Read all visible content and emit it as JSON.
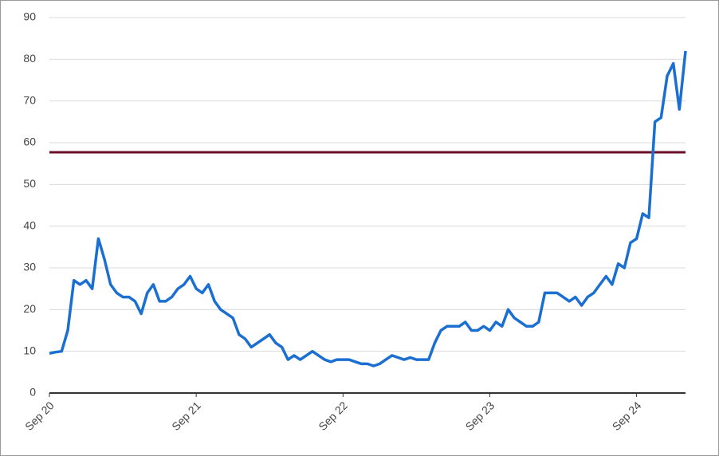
{
  "chart_data": {
    "type": "line",
    "categories": [
      "Sep 20",
      null,
      null,
      null,
      null,
      null,
      null,
      null,
      null,
      null,
      null,
      null,
      null,
      null,
      null,
      null,
      null,
      null,
      null,
      null,
      null,
      null,
      null,
      null,
      "Sep 21",
      null,
      null,
      null,
      null,
      null,
      null,
      null,
      null,
      null,
      null,
      null,
      null,
      null,
      null,
      null,
      null,
      null,
      null,
      null,
      null,
      null,
      null,
      null,
      "Sep 22",
      null,
      null,
      null,
      null,
      null,
      null,
      null,
      null,
      null,
      null,
      null,
      null,
      null,
      null,
      null,
      null,
      null,
      null,
      null,
      null,
      null,
      null,
      null,
      "Sep 23",
      null,
      null,
      null,
      null,
      null,
      null,
      null,
      null,
      null,
      null,
      null,
      null,
      null,
      null,
      null,
      null,
      null,
      null,
      null,
      null,
      null,
      null,
      null,
      "Sep 24",
      null,
      null,
      null,
      null,
      null,
      null,
      null,
      null
    ],
    "series": [
      {
        "color": "#1a6fd1",
        "values": [
          9.5,
          9.8,
          10,
          15,
          27,
          26,
          27,
          25,
          37,
          32,
          26,
          24,
          23,
          23,
          22,
          19,
          24,
          26,
          22,
          22,
          23,
          25,
          26,
          28,
          25,
          24,
          26,
          22,
          20,
          19,
          18,
          14,
          13,
          11,
          12,
          13,
          14,
          12,
          11,
          8,
          9,
          8,
          9,
          10,
          9,
          8,
          7.5,
          8,
          8,
          8,
          7.5,
          7,
          7,
          6.5,
          7,
          8,
          9,
          8.5,
          8,
          8.5,
          8,
          8,
          8,
          12,
          15,
          16,
          16,
          16,
          17,
          15,
          15,
          16,
          15,
          17,
          16,
          20,
          18,
          17,
          16,
          16,
          17,
          24,
          24,
          24,
          23,
          22,
          23,
          21,
          23,
          24,
          26,
          28,
          26,
          31,
          30,
          36,
          37,
          43,
          42,
          65,
          66,
          76,
          79,
          68,
          82
        ]
      }
    ],
    "reference_line": {
      "value": 57.7,
      "color": "#6b0f2a"
    },
    "ylim": [
      0,
      90
    ],
    "yticks": [
      0,
      10,
      20,
      30,
      40,
      50,
      60,
      70,
      80,
      90
    ],
    "grid": true
  }
}
